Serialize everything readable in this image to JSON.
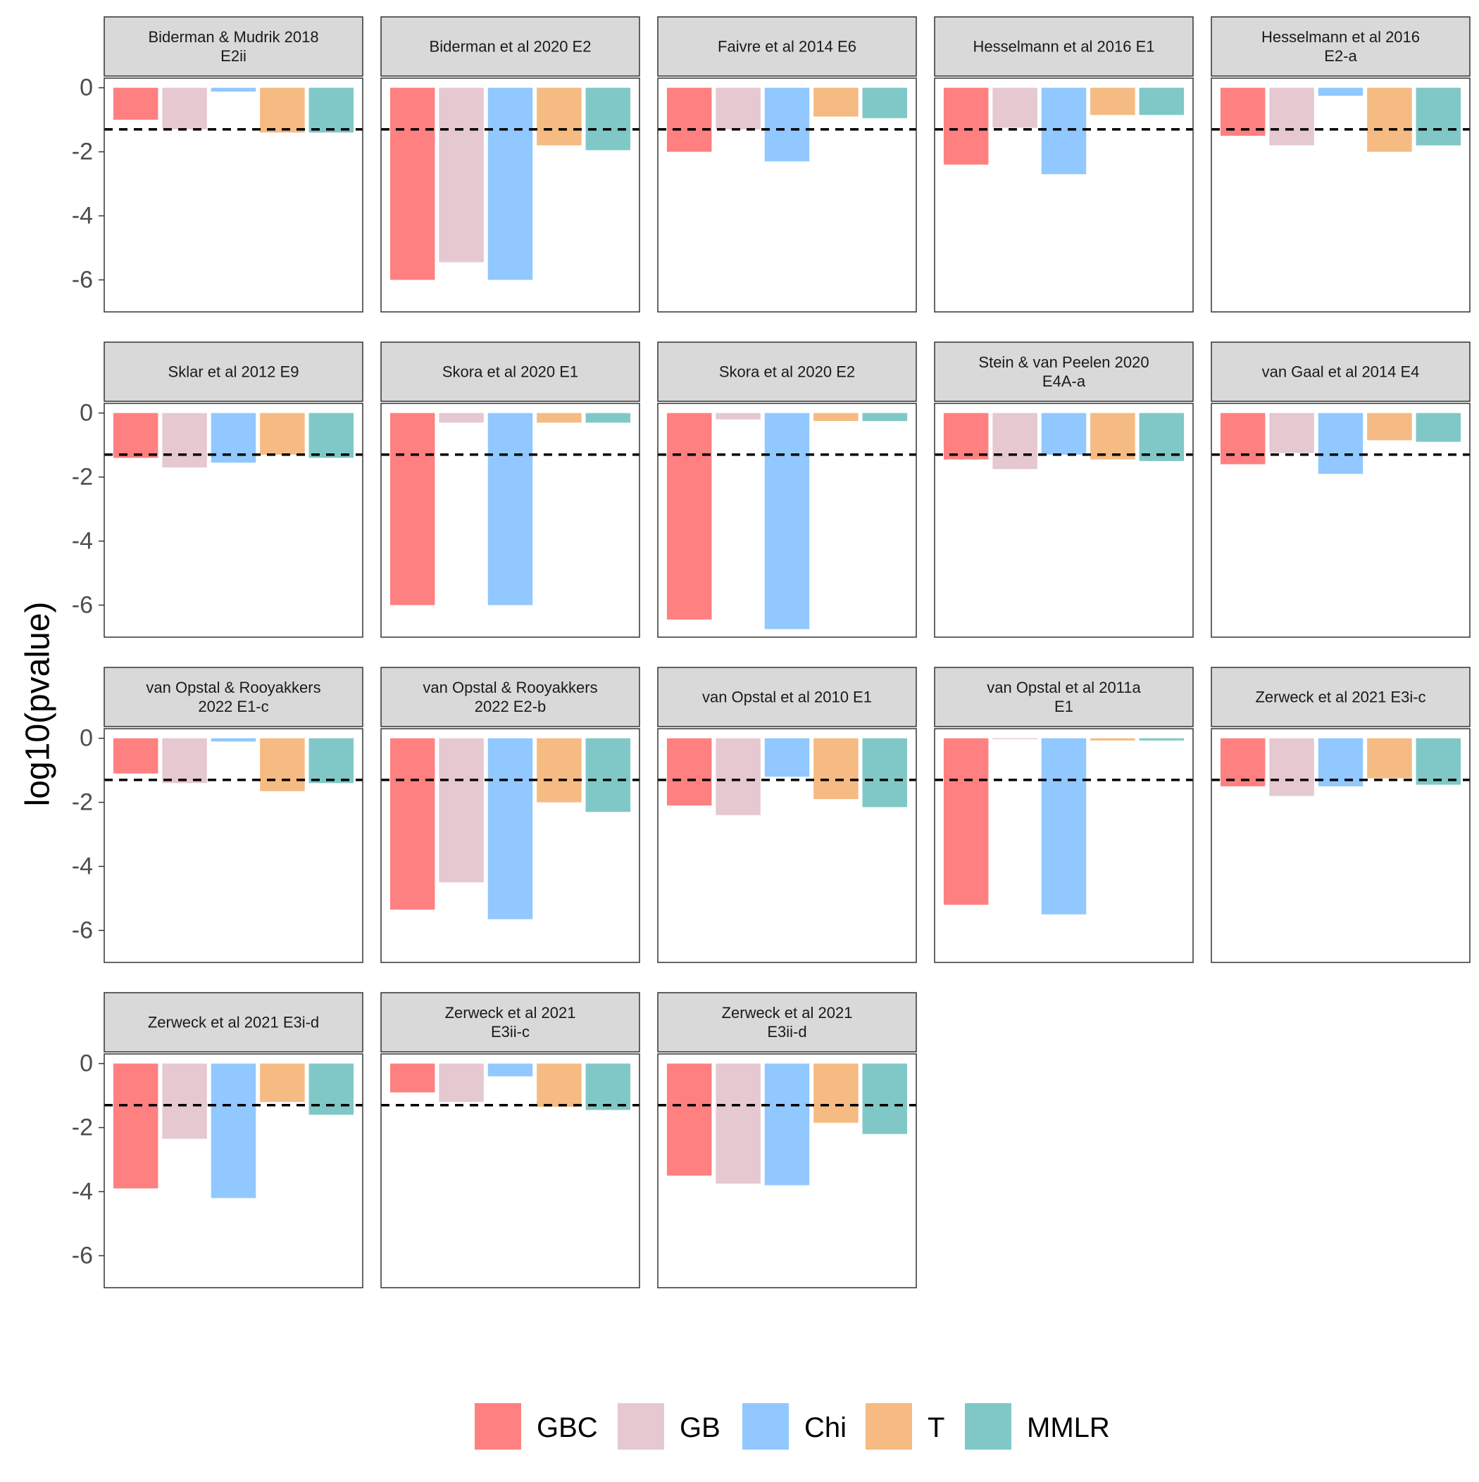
{
  "chart_data": {
    "type": "bar",
    "ylabel": "log10(pvalue)",
    "xlabel": "",
    "ylim": [
      -7,
      0.3
    ],
    "yticks": [
      0,
      -2,
      -4,
      -6
    ],
    "threshold": -1.3,
    "legend_position": "bottom",
    "series": [
      {
        "name": "GBC",
        "color": "#ff8080"
      },
      {
        "name": "GB",
        "color": "#e6c8d0"
      },
      {
        "name": "Chi",
        "color": "#91c8ff"
      },
      {
        "name": "T",
        "color": "#f5bb82"
      },
      {
        "name": "MMLR",
        "color": "#80c8c8"
      }
    ],
    "panels": [
      {
        "title": [
          "Biderman & Mudrik 2018",
          "E2ii"
        ],
        "values": [
          -1.0,
          -1.3,
          -0.12,
          -1.4,
          -1.4
        ]
      },
      {
        "title": [
          "Biderman et al 2020 E2"
        ],
        "values": [
          -6.0,
          -5.45,
          -6.0,
          -1.8,
          -1.95
        ]
      },
      {
        "title": [
          "Faivre et al 2014 E6"
        ],
        "values": [
          -2.0,
          -1.3,
          -2.3,
          -0.9,
          -0.95
        ]
      },
      {
        "title": [
          "Hesselmann et al 2016 E1"
        ],
        "values": [
          -2.4,
          -1.25,
          -2.7,
          -0.85,
          -0.85
        ]
      },
      {
        "title": [
          "Hesselmann et al 2016",
          "E2-a"
        ],
        "values": [
          -1.5,
          -1.8,
          -0.25,
          -2.0,
          -1.8
        ]
      },
      {
        "title": [
          "Sklar et al 2012 E9"
        ],
        "values": [
          -1.4,
          -1.7,
          -1.55,
          -1.3,
          -1.4
        ]
      },
      {
        "title": [
          "Skora et al 2020 E1"
        ],
        "values": [
          -6.0,
          -0.3,
          -6.0,
          -0.3,
          -0.3
        ]
      },
      {
        "title": [
          "Skora et al 2020 E2"
        ],
        "values": [
          -6.45,
          -0.2,
          -6.75,
          -0.25,
          -0.25
        ]
      },
      {
        "title": [
          "Stein & van Peelen 2020",
          "E4A-a"
        ],
        "values": [
          -1.45,
          -1.75,
          -1.3,
          -1.45,
          -1.5
        ]
      },
      {
        "title": [
          "van Gaal et al 2014 E4"
        ],
        "values": [
          -1.6,
          -1.25,
          -1.9,
          -0.85,
          -0.9
        ]
      },
      {
        "title": [
          "van Opstal & Rooyakkers",
          "2022 E1-c"
        ],
        "values": [
          -1.1,
          -1.4,
          -0.1,
          -1.65,
          -1.4
        ]
      },
      {
        "title": [
          "van Opstal & Rooyakkers",
          "2022 E2-b"
        ],
        "values": [
          -5.35,
          -4.5,
          -5.65,
          -2.0,
          -2.3
        ]
      },
      {
        "title": [
          "van Opstal et al 2010 E1"
        ],
        "values": [
          -2.1,
          -2.4,
          -1.2,
          -1.9,
          -2.15
        ]
      },
      {
        "title": [
          "van Opstal et al 2011a",
          "E1"
        ],
        "values": [
          -5.2,
          -0.03,
          -5.5,
          -0.07,
          -0.07
        ]
      },
      {
        "title": [
          "Zerweck et al 2021 E3i-c"
        ],
        "values": [
          -1.5,
          -1.8,
          -1.5,
          -1.25,
          -1.45
        ]
      },
      {
        "title": [
          "Zerweck et al 2021 E3i-d"
        ],
        "values": [
          -3.9,
          -2.35,
          -4.2,
          -1.2,
          -1.6
        ]
      },
      {
        "title": [
          "Zerweck et al 2021",
          "E3ii-c"
        ],
        "values": [
          -0.9,
          -1.2,
          -0.4,
          -1.35,
          -1.45
        ]
      },
      {
        "title": [
          "Zerweck et al 2021",
          "E3ii-d"
        ],
        "values": [
          -3.5,
          -3.75,
          -3.8,
          -1.85,
          -2.2
        ]
      }
    ]
  }
}
